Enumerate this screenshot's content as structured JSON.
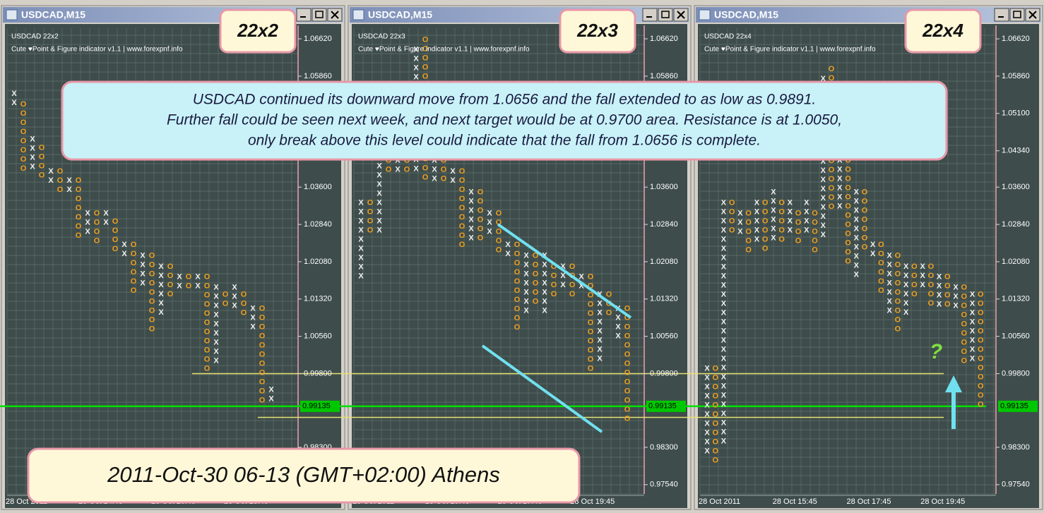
{
  "windows": [
    {
      "title": "USDCAD,M15",
      "callout": "22x2",
      "header": [
        "USDCAD 22x2",
        "Cute  ♥Point & Figure indicator v1.1 | www.forexpnf.info"
      ],
      "time_labels": [
        "28 Oct 2011",
        "28 Oct 14:45",
        "28 Oct 16:45",
        "28 Oct 18:45"
      ],
      "columns": [
        {
          "type": "X",
          "hi": 1.055,
          "lo": 1.0528
        },
        {
          "type": "O",
          "hi": 1.0528,
          "lo": 1.0392
        },
        {
          "type": "X",
          "hi": 1.0457,
          "lo": 1.0392
        },
        {
          "type": "O",
          "hi": 1.044,
          "lo": 1.0373
        },
        {
          "type": "X",
          "hi": 1.0392,
          "lo": 1.0373
        },
        {
          "type": "O",
          "hi": 1.0392,
          "lo": 1.0349
        },
        {
          "type": "X",
          "hi": 1.0373,
          "lo": 1.0349
        },
        {
          "type": "O",
          "hi": 1.0373,
          "lo": 1.0256
        },
        {
          "type": "X",
          "hi": 1.0306,
          "lo": 1.0256
        },
        {
          "type": "O",
          "hi": 1.0306,
          "lo": 1.0242
        },
        {
          "type": "X",
          "hi": 1.0306,
          "lo": 1.0277
        },
        {
          "type": "O",
          "hi": 1.029,
          "lo": 1.022
        },
        {
          "type": "X",
          "hi": 1.0242,
          "lo": 1.022
        },
        {
          "type": "O",
          "hi": 1.0242,
          "lo": 1.0141
        },
        {
          "type": "X",
          "hi": 1.022,
          "lo": 1.0155
        },
        {
          "type": "O",
          "hi": 1.022,
          "lo": 1.0069
        },
        {
          "type": "X",
          "hi": 1.0198,
          "lo": 1.009
        },
        {
          "type": "O",
          "hi": 1.0198,
          "lo": 1.0141
        },
        {
          "type": "X",
          "hi": 1.0177,
          "lo": 1.0155
        },
        {
          "type": "O",
          "hi": 1.0177,
          "lo": 1.0155
        },
        {
          "type": "X",
          "hi": 1.0177,
          "lo": 1.0155
        },
        {
          "type": "O",
          "hi": 1.0177,
          "lo": 0.9976
        },
        {
          "type": "X",
          "hi": 1.0155,
          "lo": 0.999
        },
        {
          "type": "O",
          "hi": 1.0141,
          "lo": 1.0112
        },
        {
          "type": "X",
          "hi": 1.0155,
          "lo": 1.0112
        },
        {
          "type": "O",
          "hi": 1.0141,
          "lo": 1.009
        },
        {
          "type": "X",
          "hi": 1.0112,
          "lo": 1.0069
        },
        {
          "type": "O",
          "hi": 1.0112,
          "lo": 0.9912
        },
        {
          "type": "X",
          "hi": 0.9947,
          "lo": 0.9925
        }
      ]
    },
    {
      "title": "USDCAD,M15",
      "callout": "22x3",
      "header": [
        "USDCAD 22x3",
        "Cute  ♥Point & Figure indicator v1.1 | www.forexpnf.info"
      ],
      "time_labels": [
        "28 Oct 2011",
        "28 Oct 15:45",
        "28 Oct 17:45",
        "28 Oct 19:45"
      ],
      "columns": [
        {
          "type": "X",
          "hi": 1.0328,
          "lo": 1.0177
        },
        {
          "type": "O",
          "hi": 1.0328,
          "lo": 1.0256
        },
        {
          "type": "X",
          "hi": 1.044,
          "lo": 1.0256
        },
        {
          "type": "O",
          "hi": 1.0414,
          "lo": 1.0392
        },
        {
          "type": "X",
          "hi": 1.0414,
          "lo": 1.0392
        },
        {
          "type": "O",
          "hi": 1.0414,
          "lo": 1.0392
        },
        {
          "type": "X",
          "hi": 1.064,
          "lo": 1.0392
        },
        {
          "type": "O",
          "hi": 1.066,
          "lo": 1.0373
        },
        {
          "type": "X",
          "hi": 1.0414,
          "lo": 1.0373
        },
        {
          "type": "O",
          "hi": 1.0414,
          "lo": 1.0373
        },
        {
          "type": "X",
          "hi": 1.0392,
          "lo": 1.0373
        },
        {
          "type": "O",
          "hi": 1.0392,
          "lo": 1.0242
        },
        {
          "type": "X",
          "hi": 1.0349,
          "lo": 1.0242
        },
        {
          "type": "O",
          "hi": 1.0349,
          "lo": 1.0242
        },
        {
          "type": "X",
          "hi": 1.0306,
          "lo": 1.0256
        },
        {
          "type": "O",
          "hi": 1.0306,
          "lo": 1.022
        },
        {
          "type": "X",
          "hi": 1.0242,
          "lo": 1.022
        },
        {
          "type": "O",
          "hi": 1.0242,
          "lo": 1.0069
        },
        {
          "type": "X",
          "hi": 1.022,
          "lo": 1.009
        },
        {
          "type": "O",
          "hi": 1.022,
          "lo": 1.0112
        },
        {
          "type": "X",
          "hi": 1.022,
          "lo": 1.009
        },
        {
          "type": "O",
          "hi": 1.0198,
          "lo": 1.0141
        },
        {
          "type": "X",
          "hi": 1.0198,
          "lo": 1.0155
        },
        {
          "type": "O",
          "hi": 1.0198,
          "lo": 1.0141
        },
        {
          "type": "X",
          "hi": 1.0177,
          "lo": 1.0141
        },
        {
          "type": "O",
          "hi": 1.0177,
          "lo": 0.999
        },
        {
          "type": "X",
          "hi": 1.0141,
          "lo": 1.0005
        },
        {
          "type": "O",
          "hi": 1.0141,
          "lo": 1.009
        },
        {
          "type": "X",
          "hi": 1.0112,
          "lo": 1.0041
        },
        {
          "type": "O",
          "hi": 1.0112,
          "lo": 0.987
        }
      ]
    },
    {
      "title": "USDCAD,M15",
      "callout": "22x4",
      "header": [
        "USDCAD 22x4",
        "Cute  ♥Point & Figure indicator v1.1 | www.forexpnf.info"
      ],
      "time_labels": [
        "28 Oct 2011",
        "28 Oct 15:45",
        "28 Oct 17:45",
        "28 Oct 19:45"
      ],
      "columns": [
        {
          "type": "X",
          "hi": 0.999,
          "lo": 0.982
        },
        {
          "type": "O",
          "hi": 0.999,
          "lo": 0.98
        },
        {
          "type": "X",
          "hi": 1.0328,
          "lo": 0.9826
        },
        {
          "type": "O",
          "hi": 1.0328,
          "lo": 1.0256
        },
        {
          "type": "X",
          "hi": 1.0306,
          "lo": 1.0256
        },
        {
          "type": "O",
          "hi": 1.0306,
          "lo": 1.022
        },
        {
          "type": "X",
          "hi": 1.0328,
          "lo": 1.0242
        },
        {
          "type": "O",
          "hi": 1.0328,
          "lo": 1.022
        },
        {
          "type": "X",
          "hi": 1.0349,
          "lo": 1.0242
        },
        {
          "type": "O",
          "hi": 1.0328,
          "lo": 1.0242
        },
        {
          "type": "X",
          "hi": 1.0328,
          "lo": 1.0256
        },
        {
          "type": "O",
          "hi": 1.0306,
          "lo": 1.0242
        },
        {
          "type": "X",
          "hi": 1.0328,
          "lo": 1.0256
        },
        {
          "type": "O",
          "hi": 1.0306,
          "lo": 1.022
        },
        {
          "type": "X",
          "hi": 1.058,
          "lo": 1.0256
        },
        {
          "type": "O",
          "hi": 1.06,
          "lo": 1.0306
        },
        {
          "type": "X",
          "hi": 1.0414,
          "lo": 1.0306
        },
        {
          "type": "O",
          "hi": 1.0414,
          "lo": 1.0198
        },
        {
          "type": "X",
          "hi": 1.0349,
          "lo": 1.0177
        },
        {
          "type": "O",
          "hi": 1.0349,
          "lo": 1.022
        },
        {
          "type": "X",
          "hi": 1.0242,
          "lo": 1.022
        },
        {
          "type": "O",
          "hi": 1.0242,
          "lo": 1.0141
        },
        {
          "type": "X",
          "hi": 1.022,
          "lo": 1.009
        },
        {
          "type": "O",
          "hi": 1.022,
          "lo": 1.0069
        },
        {
          "type": "X",
          "hi": 1.0198,
          "lo": 1.009
        },
        {
          "type": "O",
          "hi": 1.0198,
          "lo": 1.0141
        },
        {
          "type": "X",
          "hi": 1.0198,
          "lo": 1.0155
        },
        {
          "type": "O",
          "hi": 1.0198,
          "lo": 1.0112
        },
        {
          "type": "X",
          "hi": 1.0177,
          "lo": 1.0112
        },
        {
          "type": "O",
          "hi": 1.0177,
          "lo": 1.0112
        },
        {
          "type": "X",
          "hi": 1.0155,
          "lo": 1.0112
        },
        {
          "type": "O",
          "hi": 1.0155,
          "lo": 0.999
        },
        {
          "type": "X",
          "hi": 1.0141,
          "lo": 1.0005
        },
        {
          "type": "O",
          "hi": 1.0141,
          "lo": 0.9912
        }
      ]
    }
  ],
  "price_axis": {
    "ylim": [
      0.9735,
      1.0675
    ],
    "ticks": [
      {
        "value": 1.0662,
        "label": "1.06620"
      },
      {
        "value": 1.0586,
        "label": "1.05860"
      },
      {
        "value": 1.051,
        "label": "1.05100"
      },
      {
        "value": 1.0434,
        "label": "1.04340"
      },
      {
        "value": 1.036,
        "label": "1.03600"
      },
      {
        "value": 1.0284,
        "label": "1.02840"
      },
      {
        "value": 1.0208,
        "label": "1.02080"
      },
      {
        "value": 1.0132,
        "label": "1.01320"
      },
      {
        "value": 1.0056,
        "label": "1.00560"
      },
      {
        "value": 0.998,
        "label": "0.99800"
      },
      {
        "value": 0.983,
        "label": "0.98300"
      },
      {
        "value": 0.9754,
        "label": "0.97540"
      }
    ],
    "current": 0.99135,
    "levels": [
      0.998,
      0.9891
    ]
  },
  "annotation": [
    "USDCAD continued its downward move from 1.0656 and the fall extended to as low as 0.9891.",
    "Further fall could be seen next week, and next target would be at 0.9700 area. Resistance is at 1.0050,",
    "only break above this level could indicate that the fall from 1.0656 is complete."
  ],
  "date_banner": "2011-Oct-30 06-13 (GMT+02:00) Athens",
  "question_mark": "?"
}
